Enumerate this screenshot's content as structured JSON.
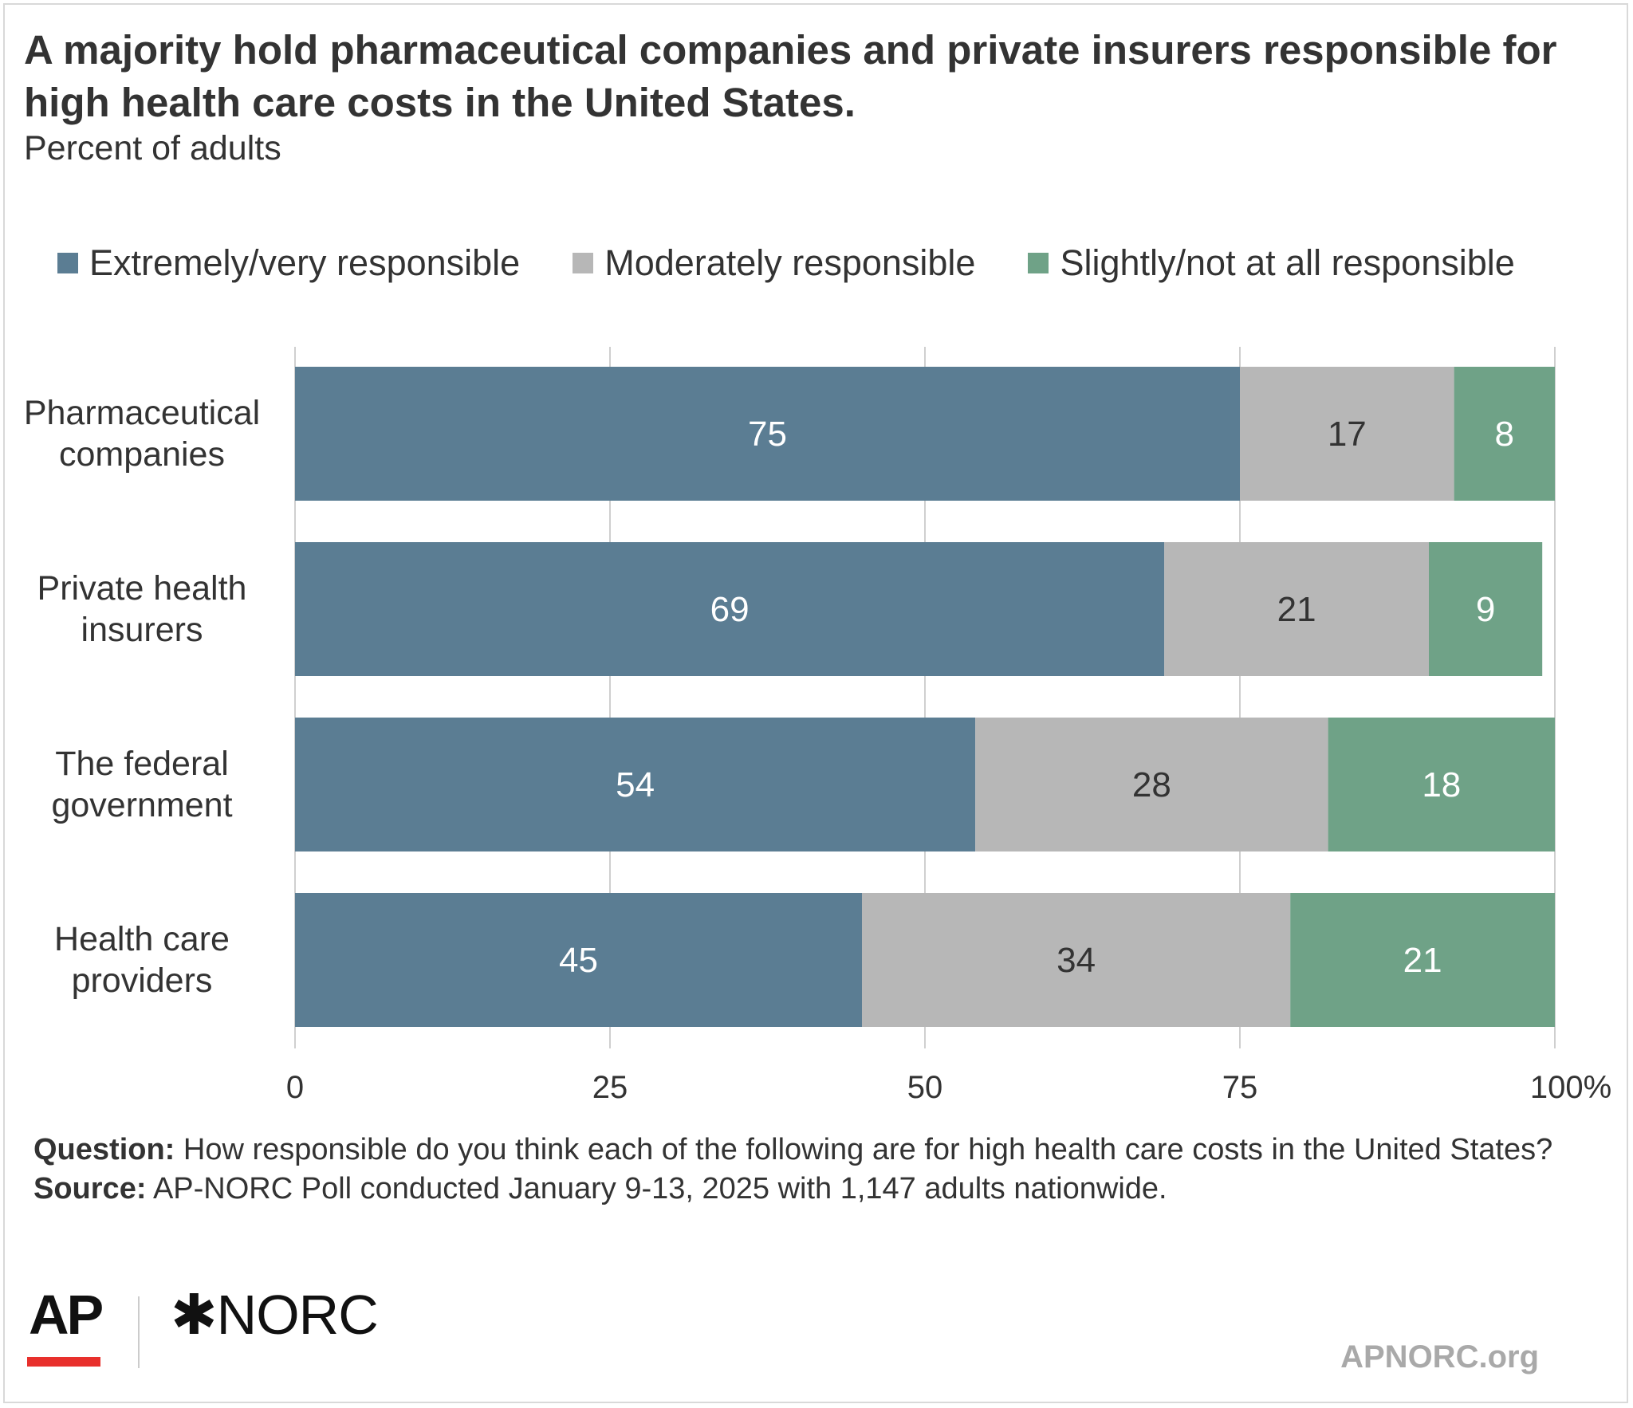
{
  "title": "A majority hold pharmaceutical companies and private insurers responsible for high health care costs in the United States.",
  "subtitle": "Percent of adults",
  "colors": {
    "extremely": "#5b7d93",
    "moderately": "#b7b7b7",
    "slightly": "#6fa287",
    "gridline": "#cfcfcf"
  },
  "legend": [
    {
      "label": "Extremely/very responsible",
      "color": "#5b7d93"
    },
    {
      "label": "Moderately responsible",
      "color": "#b7b7b7"
    },
    {
      "label": "Slightly/not at all responsible",
      "color": "#6fa287"
    }
  ],
  "chart_data": {
    "type": "bar",
    "orientation": "horizontal",
    "stacked": true,
    "categories": [
      [
        "Pharmaceutical",
        "companies"
      ],
      [
        "Private health",
        "insurers"
      ],
      [
        "The federal",
        "government"
      ],
      [
        "Health care",
        "providers"
      ]
    ],
    "series": [
      {
        "name": "Extremely/very responsible",
        "values": [
          75,
          69,
          54,
          45
        ]
      },
      {
        "name": "Moderately responsible",
        "values": [
          17,
          21,
          28,
          34
        ]
      },
      {
        "name": "Slightly/not at all responsible",
        "values": [
          8,
          9,
          18,
          21
        ]
      }
    ],
    "xlim": [
      0,
      100
    ],
    "xticks": [
      "0",
      "25",
      "50",
      "75",
      "100%"
    ],
    "grid": true,
    "legend_position": "top"
  },
  "notes": {
    "question_label": "Question:",
    "question_text": "How responsible do you think each of the following are for high health care costs in the United States?",
    "source_label": "Source:",
    "source_text": "AP-NORC Poll conducted January 9-13, 2025 with 1,147 adults nationwide."
  },
  "logos": {
    "ap": "AP",
    "norc": "NORC",
    "norc_mark": "✱"
  },
  "site": "APNORC.org"
}
